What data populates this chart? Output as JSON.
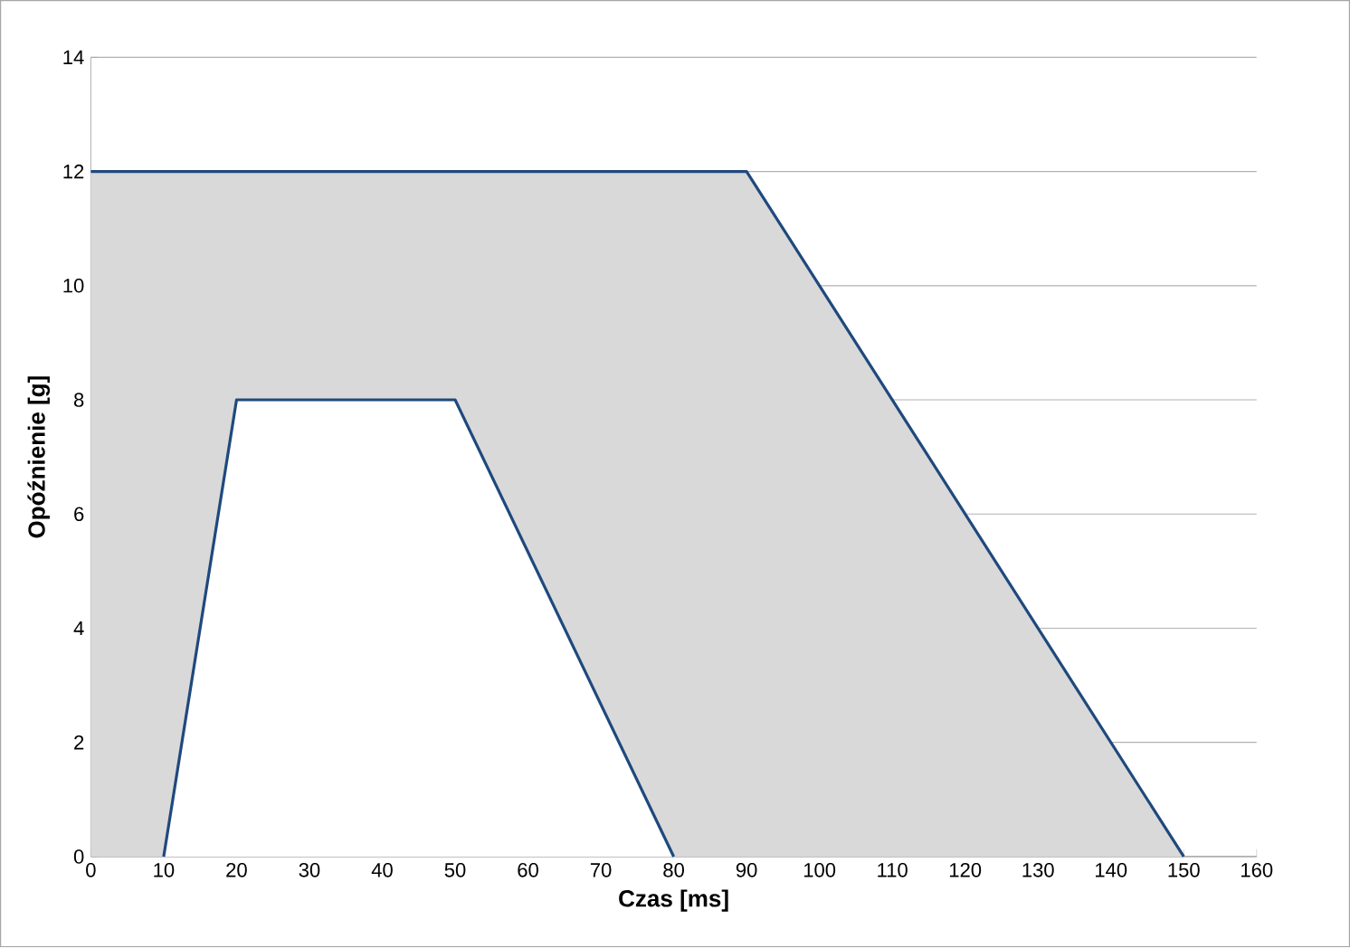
{
  "chart_data": {
    "type": "area",
    "xlabel": "Czas [ms]",
    "ylabel": "Opóźnienie [g]",
    "xlim": [
      0,
      160
    ],
    "xticks": [
      0,
      10,
      20,
      30,
      40,
      50,
      60,
      70,
      80,
      90,
      100,
      110,
      120,
      130,
      140,
      150,
      160
    ],
    "ylim": [
      0,
      14
    ],
    "yticks": [
      0,
      2,
      4,
      6,
      8,
      10,
      12,
      14
    ],
    "grid": "y",
    "marker": "none",
    "line_style": "solid",
    "series": [
      {
        "type": "area",
        "color": "#1f497d",
        "x": [
          0,
          90,
          150
        ],
        "values": [
          12,
          12,
          0
        ]
      },
      {
        "type": "line",
        "color": "#1f497d",
        "x": [
          10,
          20,
          50,
          80
        ],
        "values": [
          0,
          8,
          8,
          0
        ]
      }
    ]
  }
}
